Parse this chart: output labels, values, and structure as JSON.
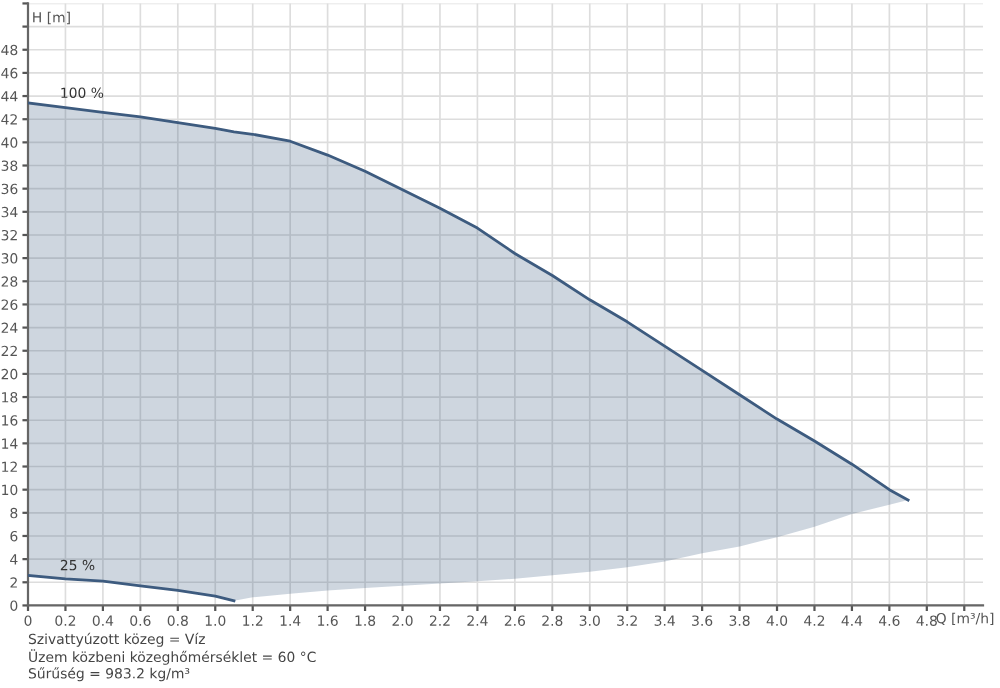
{
  "chart_data": {
    "type": "line",
    "xlabel": "Q [m³/h]",
    "ylabel": "H [m]",
    "series": [
      {
        "name": "100 %",
        "color": "#3d5b7f",
        "x": [
          0,
          0.2,
          0.4,
          0.6,
          0.8,
          1.0,
          1.1,
          1.2,
          1.4,
          1.6,
          1.8,
          2.0,
          2.2,
          2.4,
          2.6,
          2.8,
          3.0,
          3.2,
          3.4,
          3.6,
          3.8,
          4.0,
          4.2,
          4.4,
          4.6,
          4.7
        ],
        "values": [
          43.4,
          43.0,
          42.6,
          42.2,
          41.7,
          41.2,
          40.9,
          40.7,
          40.1,
          38.9,
          37.5,
          35.9,
          34.3,
          32.6,
          30.4,
          28.5,
          26.4,
          24.5,
          22.4,
          20.3,
          18.2,
          16.1,
          14.2,
          12.2,
          10.0,
          9.1
        ],
        "upper": [
          43.4,
          43.0,
          42.6,
          42.2,
          41.7,
          41.2,
          40.9,
          40.7,
          40.1,
          38.9,
          37.5,
          35.9,
          34.3,
          32.6,
          30.4,
          28.5,
          26.4,
          24.5,
          22.4,
          20.3,
          18.2,
          16.1,
          14.2,
          12.2,
          10.0,
          9.1
        ],
        "lower": [
          2.6,
          2.3,
          2.1,
          1.7,
          1.3,
          0.8,
          0.4,
          0.7,
          1.0,
          1.3,
          1.5,
          1.7,
          1.9,
          2.1,
          2.3,
          2.6,
          2.9,
          3.3,
          3.8,
          4.5,
          5.1,
          5.9,
          6.8,
          7.9,
          8.7,
          9.1
        ]
      },
      {
        "name": "25 %",
        "color": "#3d5b7f",
        "x": [
          0,
          0.2,
          0.4,
          0.6,
          0.8,
          1.0,
          1.1
        ],
        "values": [
          2.6,
          2.3,
          2.1,
          1.7,
          1.3,
          0.8,
          0.4
        ]
      }
    ],
    "xlim": [
      0,
      5.1
    ],
    "xticks": [
      0,
      0.2,
      0.4,
      0.6,
      0.8,
      {
        "value": 1,
        "label": "1.0"
      },
      1.2,
      1.4,
      1.6,
      1.8,
      {
        "value": 2,
        "label": "2.0"
      },
      2.2,
      2.4,
      2.6,
      2.8,
      {
        "value": 3,
        "label": "3.0"
      },
      3.2,
      3.4,
      3.6,
      3.8,
      {
        "value": 4,
        "label": "4.0"
      },
      4.2,
      4.4,
      4.6,
      4.8,
      {
        "value": 5.0,
        "label": null
      }
    ],
    "ylim": [
      0,
      52
    ],
    "yticks": [
      0,
      2,
      4,
      6,
      8,
      10,
      12,
      14,
      16,
      18,
      20,
      22,
      24,
      26,
      28,
      30,
      32,
      34,
      36,
      38,
      40,
      42,
      44,
      46,
      48,
      {
        "value": 50,
        "label": null
      },
      {
        "value": 52,
        "label": null
      }
    ],
    "grid": true,
    "legend": false,
    "marker": "none",
    "line_style": "solid",
    "annotations": [
      "Szivattyúzott közeg = Víz",
      "Üzem közbeni közeghőmérséklet = 60 °C",
      "Sűrűség = 983.2 kg/m³"
    ]
  }
}
